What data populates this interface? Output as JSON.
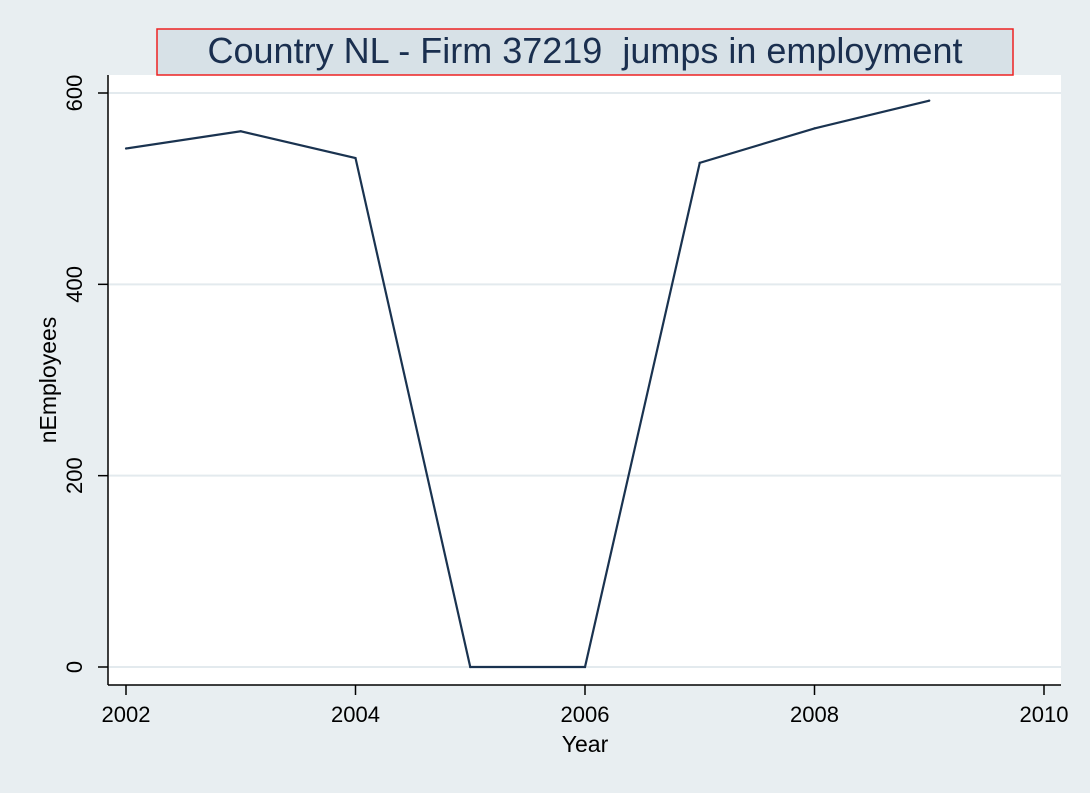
{
  "chart_data": {
    "type": "line",
    "title": "Country NL - Firm 37219  jumps in employment",
    "xlabel": "Year",
    "ylabel": "nEmployees",
    "xlim": [
      2002,
      2010
    ],
    "ylim": [
      0,
      600
    ],
    "x_ticks": [
      2002,
      2004,
      2006,
      2008,
      2010
    ],
    "y_ticks": [
      0,
      200,
      400,
      600
    ],
    "grid": "horizontal",
    "series": [
      {
        "x": [
          2002,
          2003,
          2004,
          2005,
          2006,
          2007,
          2008,
          2009
        ],
        "values": [
          542,
          560,
          532,
          0,
          0,
          527,
          563,
          592
        ]
      }
    ],
    "colors": {
      "line": "#1a3350",
      "background": "#e8eef1",
      "plot_background": "#ffffff",
      "grid": "#e3eaee",
      "title_box_fill": "#d7e1e7",
      "title_box_border": "#ee2222",
      "title_text": "#1a2f4f"
    }
  }
}
